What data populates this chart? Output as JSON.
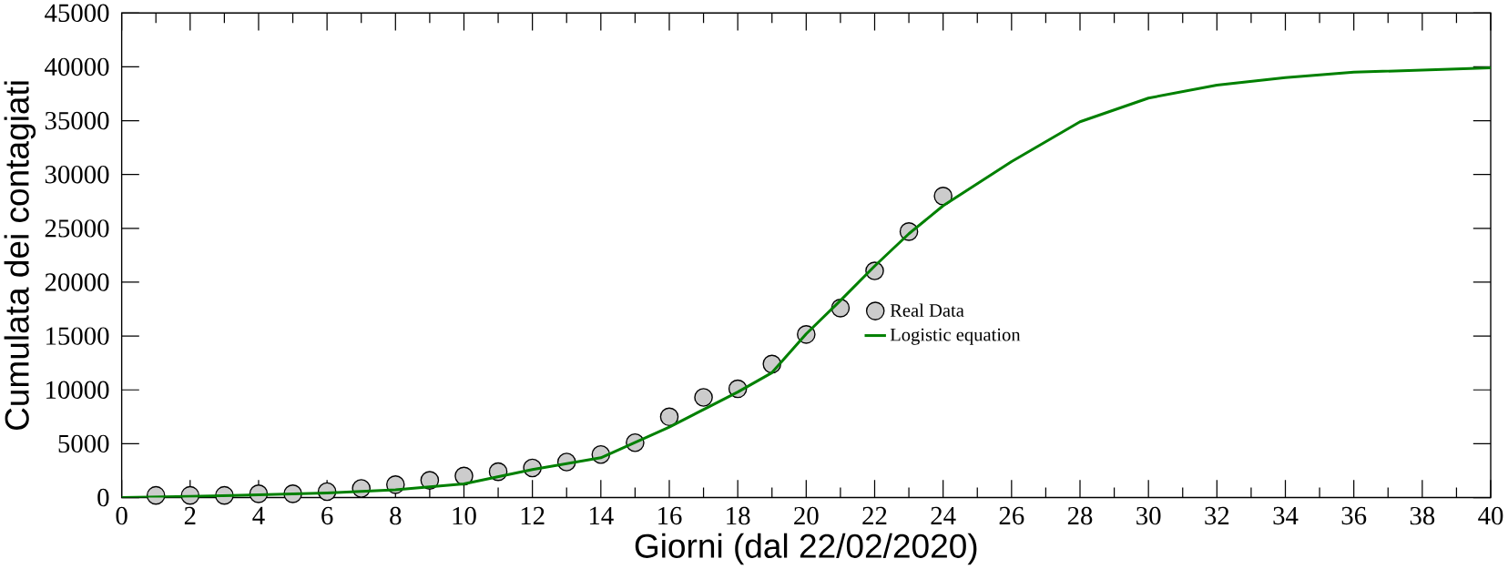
{
  "chart_data": {
    "type": "scatter",
    "xlabel": "Giorni (dal 22/02/2020)",
    "ylabel": "Cumulata dei contagiati",
    "xlim": [
      0,
      40
    ],
    "ylim": [
      0,
      45000
    ],
    "xticks": [
      0,
      2,
      4,
      6,
      8,
      10,
      12,
      14,
      16,
      18,
      20,
      22,
      24,
      26,
      28,
      30,
      32,
      34,
      36,
      38,
      40
    ],
    "yticks": [
      0,
      5000,
      10000,
      15000,
      20000,
      25000,
      30000,
      35000,
      40000,
      45000
    ],
    "grid": false,
    "legend": "center",
    "series": [
      {
        "name": "Real Data",
        "marker": "circle",
        "color": "#000000",
        "x": [
          1,
          2,
          3,
          4,
          5,
          6,
          7,
          8,
          9,
          10,
          11,
          12,
          13,
          14,
          15,
          16,
          17,
          18,
          19,
          20,
          21,
          22,
          23,
          24
        ],
        "values": [
          200,
          200,
          200,
          350,
          350,
          550,
          850,
          1200,
          1600,
          2000,
          2400,
          2750,
          3300,
          4000,
          5100,
          7500,
          9300,
          10100,
          12400,
          15150,
          17600,
          21050,
          24700,
          28000
        ]
      },
      {
        "name": "Logistic equation",
        "type": "line",
        "marker": "none",
        "line_style": "solid",
        "color": "#008000",
        "x": [
          0,
          2,
          4,
          6,
          8,
          10,
          12,
          14,
          16,
          18,
          19,
          20,
          21,
          22,
          23,
          24,
          26,
          28,
          30,
          32,
          34,
          36,
          38,
          40
        ],
        "values": [
          0,
          100,
          250,
          420,
          720,
          1270,
          2600,
          3700,
          6550,
          9800,
          11600,
          15200,
          18300,
          21500,
          24500,
          27100,
          31200,
          34900,
          37100,
          38300,
          39000,
          39500,
          39700,
          39900
        ]
      }
    ]
  }
}
